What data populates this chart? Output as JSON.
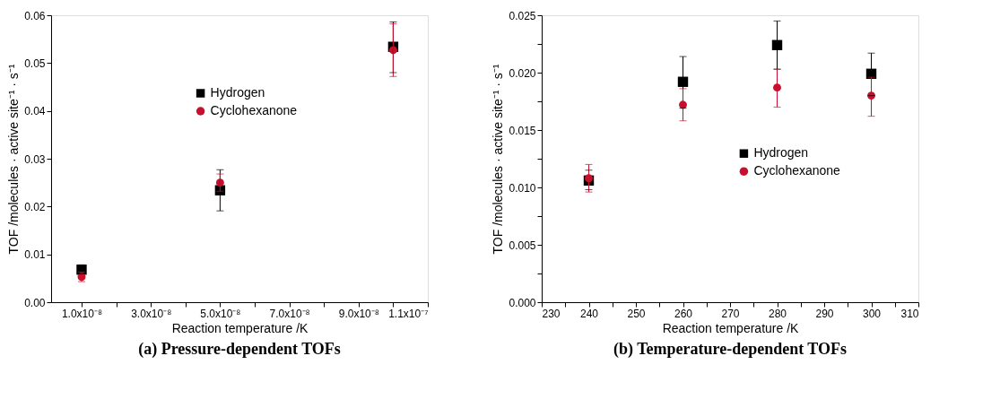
{
  "chart_data": [
    {
      "type": "scatter",
      "title": "(a) Pressure-dependent TOFs",
      "xlabel": "Reaction temperature /K",
      "ylabel": "TOF /molecules · active site⁻¹ · s⁻¹",
      "x": [
        1e-08,
        5e-08,
        1e-07
      ],
      "series": [
        {
          "name": "Hydrogen",
          "color": "#000000",
          "marker": "square",
          "values": [
            0.0068,
            0.0234,
            0.0534
          ],
          "errors": [
            [
              0.0059,
              0.0078
            ],
            [
              0.0191,
              0.0277
            ],
            [
              0.048,
              0.0586
            ]
          ]
        },
        {
          "name": "Cyclohexanone",
          "color": "#c8102e",
          "marker": "circle",
          "values": [
            0.0053,
            0.025,
            0.0527
          ],
          "errors": [
            [
              0.0043,
              0.0063
            ],
            [
              0.0232,
              0.0268
            ],
            [
              0.0472,
              0.0582
            ]
          ]
        }
      ],
      "xlim": [
        1.2e-09,
        1.1e-07
      ],
      "ylim": [
        0,
        0.06
      ],
      "xticks": [
        {
          "value": 1e-08,
          "label": "1.0x10⁻⁸"
        },
        {
          "value": 2e-08,
          "label": null
        },
        {
          "value": 3e-08,
          "label": "3.0x10⁻⁸"
        },
        {
          "value": 4e-08,
          "label": null
        },
        {
          "value": 5e-08,
          "label": "5.0x10⁻⁸"
        },
        {
          "value": 6e-08,
          "label": null
        },
        {
          "value": 7e-08,
          "label": "7.0x10⁻⁸"
        },
        {
          "value": 8e-08,
          "label": null
        },
        {
          "value": 9e-08,
          "label": "9.0x10⁻⁸"
        },
        {
          "value": 1e-07,
          "label": null
        },
        {
          "value": 1.1e-07,
          "label": "1.1x10⁻⁷"
        }
      ],
      "yticks": [
        {
          "value": 0,
          "label": "0.00"
        },
        {
          "value": 0.01,
          "label": "0.01"
        },
        {
          "value": 0.02,
          "label": "0.02"
        },
        {
          "value": 0.03,
          "label": "0.03"
        },
        {
          "value": 0.04,
          "label": "0.04"
        },
        {
          "value": 0.05,
          "label": "0.05"
        },
        {
          "value": 0.06,
          "label": "0.06"
        }
      ],
      "grid": false,
      "legend": "top"
    },
    {
      "type": "scatter",
      "title": "(b) Temperature-dependent TOFs",
      "xlabel": "Reaction temperature /K",
      "ylabel": "TOF /molecules · active site⁻¹ · s⁻¹",
      "x": [
        240,
        260,
        280,
        300
      ],
      "series": [
        {
          "name": "Hydrogen",
          "color": "#000000",
          "marker": "square",
          "values": [
            0.0106,
            0.0192,
            0.0224,
            0.0199
          ],
          "errors": [
            [
              0.0098,
              0.0115
            ],
            [
              0.0169,
              0.0214
            ],
            [
              0.0203,
              0.0245
            ],
            [
              0.018,
              0.0217
            ]
          ]
        },
        {
          "name": "Cyclohexanone",
          "color": "#c8102e",
          "marker": "circle",
          "values": [
            0.0108,
            0.0172,
            0.0187,
            0.018
          ],
          "errors": [
            [
              0.0096,
              0.012
            ],
            [
              0.0158,
              0.0186
            ],
            [
              0.017,
              0.0203
            ],
            [
              0.0162,
              0.0196
            ]
          ]
        }
      ],
      "xlim": [
        230,
        310
      ],
      "ylim": [
        0,
        0.025
      ],
      "xticks": [
        230,
        {
          "value": 235,
          "label": null
        },
        240,
        {
          "value": 245,
          "label": null
        },
        250,
        {
          "value": 255,
          "label": null
        },
        260,
        {
          "value": 265,
          "label": null
        },
        270,
        {
          "value": 275,
          "label": null
        },
        280,
        {
          "value": 285,
          "label": null
        },
        290,
        {
          "value": 295,
          "label": null
        },
        300,
        {
          "value": 305,
          "label": null
        },
        310
      ],
      "yticks": [
        {
          "value": 0,
          "label": "0.000"
        },
        {
          "value": 0.0025,
          "label": null
        },
        {
          "value": 0.005,
          "label": "0.005"
        },
        {
          "value": 0.0075,
          "label": null
        },
        {
          "value": 0.01,
          "label": "0.010"
        },
        {
          "value": 0.0125,
          "label": null
        },
        {
          "value": 0.015,
          "label": "0.015"
        },
        {
          "value": 0.0175,
          "label": null
        },
        {
          "value": 0.02,
          "label": "0.020"
        },
        {
          "value": 0.0225,
          "label": null
        },
        {
          "value": 0.025,
          "label": "0.025"
        }
      ],
      "grid": false,
      "legend": "right"
    }
  ]
}
